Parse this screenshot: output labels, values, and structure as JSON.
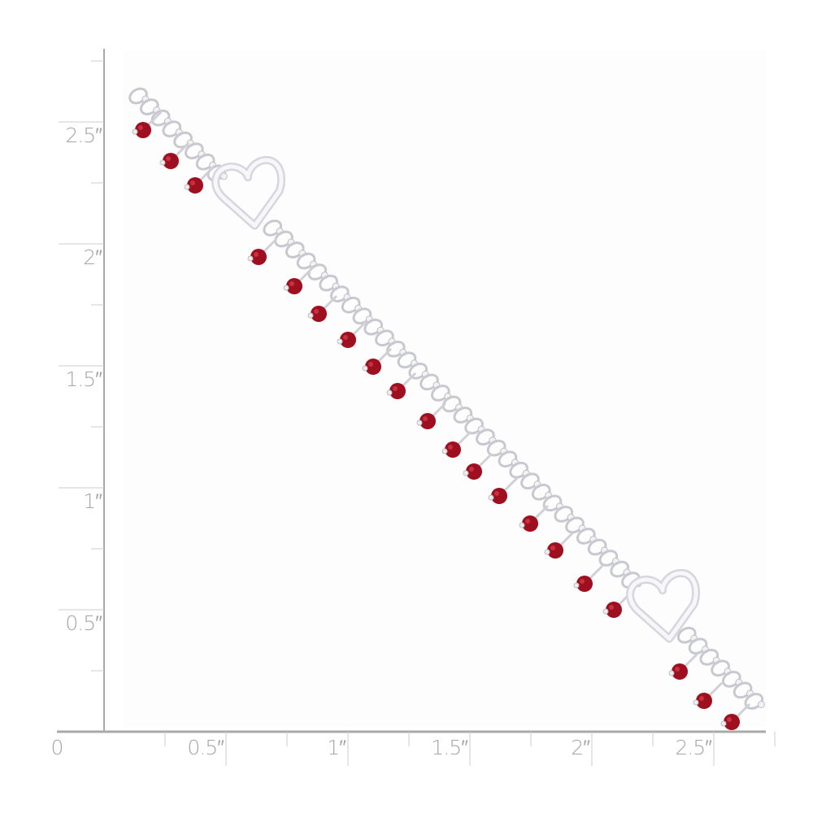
{
  "subject": "sterling silver heart charm bracelet with red beads",
  "colors": {
    "ruler": "#a9a9a9",
    "bead": "#9e1020",
    "silver": "#e8e8ec",
    "background": "#ffffff"
  },
  "ruler": {
    "unit": "inch",
    "x_labels": [
      "0",
      "0.5″",
      "1″",
      "1.5″",
      "2″",
      "2.5″"
    ],
    "y_labels": [
      "0.5″",
      "1″",
      "1.5″",
      "2″",
      "2.5″"
    ]
  }
}
